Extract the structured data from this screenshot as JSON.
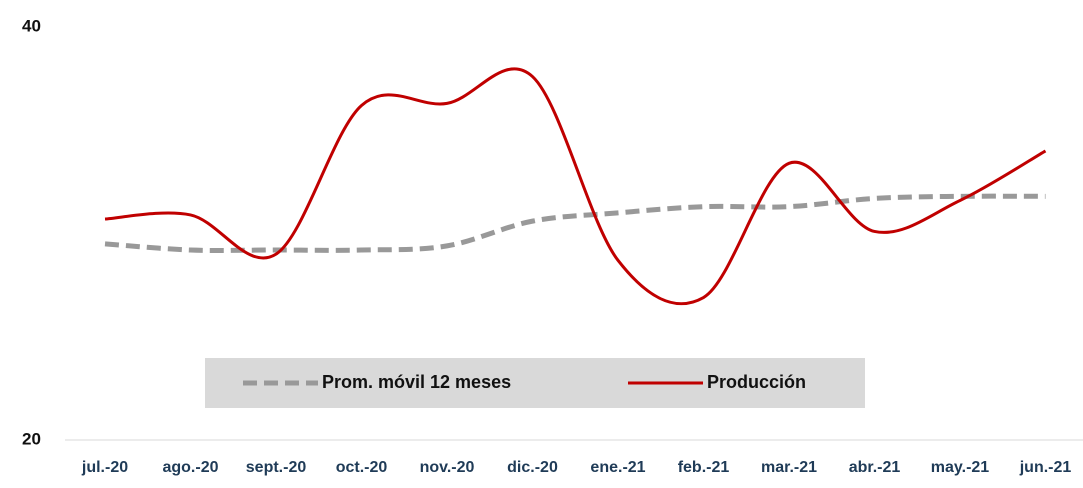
{
  "chart_data": {
    "type": "line",
    "categories": [
      "jul.-20",
      "ago.-20",
      "sept.-20",
      "oct.-20",
      "nov.-20",
      "dic.-20",
      "ene.-21",
      "feb.-21",
      "mar.-21",
      "abr.-21",
      "may.-21",
      "jun.-21"
    ],
    "series": [
      {
        "name": "Prom. móvil 12 meses",
        "color": "#999999",
        "dashed": true,
        "values": [
          29.5,
          29.2,
          29.2,
          29.2,
          29.4,
          30.6,
          31.0,
          31.3,
          31.3,
          31.7,
          31.8,
          31.8
        ]
      },
      {
        "name": "Producción",
        "color": "#c00000",
        "dashed": false,
        "values": [
          30.7,
          30.9,
          29.0,
          36.2,
          36.3,
          37.6,
          28.7,
          26.9,
          33.4,
          30.1,
          31.6,
          34.0
        ]
      }
    ],
    "ylim": [
      20,
      40
    ],
    "yticks": [
      20,
      40
    ],
    "grid": false,
    "legend": "bottom",
    "smooth": true
  }
}
